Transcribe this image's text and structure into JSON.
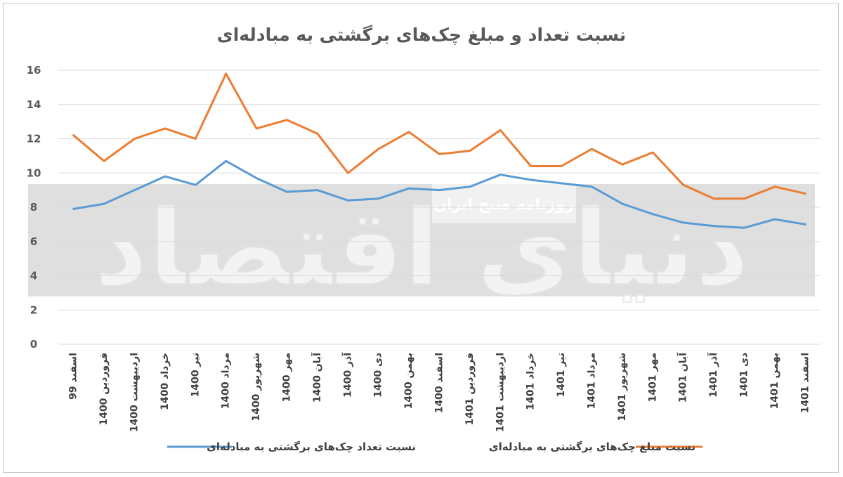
{
  "chart_data": {
    "type": "line",
    "title": "نسبت تعداد و مبلغ چک‌های برگشتی به مبادله‌ای",
    "xlabel": "",
    "ylabel": "",
    "ylim": [
      0,
      16
    ],
    "yticks": [
      "0",
      "2",
      "4",
      "6",
      "8",
      "10",
      "12",
      "14",
      "16"
    ],
    "grid": true,
    "legend_position": "bottom",
    "categories": [
      "اسفند 99",
      "فروردین 1400",
      "اردیبهشت 1400",
      "خرداد 1400",
      "تیر 1400",
      "مرداد 1400",
      "شهریور 1400",
      "مهر 1400",
      "آبان 1400",
      "آذر 1400",
      "دی 1400",
      "بهمن 1400",
      "اسفند 1400",
      "فروردین 1401",
      "اردیبهشت 1401",
      "خرداد 1401",
      "تیر 1401",
      "مرداد 1401",
      "شهریور 1401",
      "مهر 1401",
      "آبان 1401",
      "آذر 1401",
      "دی 1401",
      "بهمن 1401",
      "اسفند 1401"
    ],
    "series": [
      {
        "name": "نسبت مبلغ چک‌های برگشتی به مبادله‌ای",
        "color": "#ED7D31",
        "values": [
          12.2,
          10.7,
          12.0,
          12.6,
          12.0,
          15.8,
          12.6,
          13.1,
          12.3,
          10.0,
          11.4,
          12.4,
          11.1,
          11.3,
          12.5,
          10.4,
          10.4,
          11.4,
          10.5,
          11.2,
          9.3,
          8.5,
          8.5,
          9.2,
          8.8
        ]
      },
      {
        "name": "نسبت تعداد چک‌های برگشتی به مبادله‌ای",
        "color": "#5B9BD5",
        "values": [
          7.9,
          8.2,
          9.0,
          9.8,
          9.3,
          10.7,
          9.7,
          8.9,
          9.0,
          8.4,
          8.5,
          9.1,
          9.0,
          9.2,
          9.9,
          9.6,
          9.4,
          9.2,
          8.2,
          7.6,
          7.1,
          6.9,
          6.8,
          7.3,
          7.0
        ]
      }
    ]
  },
  "watermark": {
    "brand_text": "دنیای اقتصاد",
    "subtitle_text": "روزنامه صبح ایران"
  }
}
